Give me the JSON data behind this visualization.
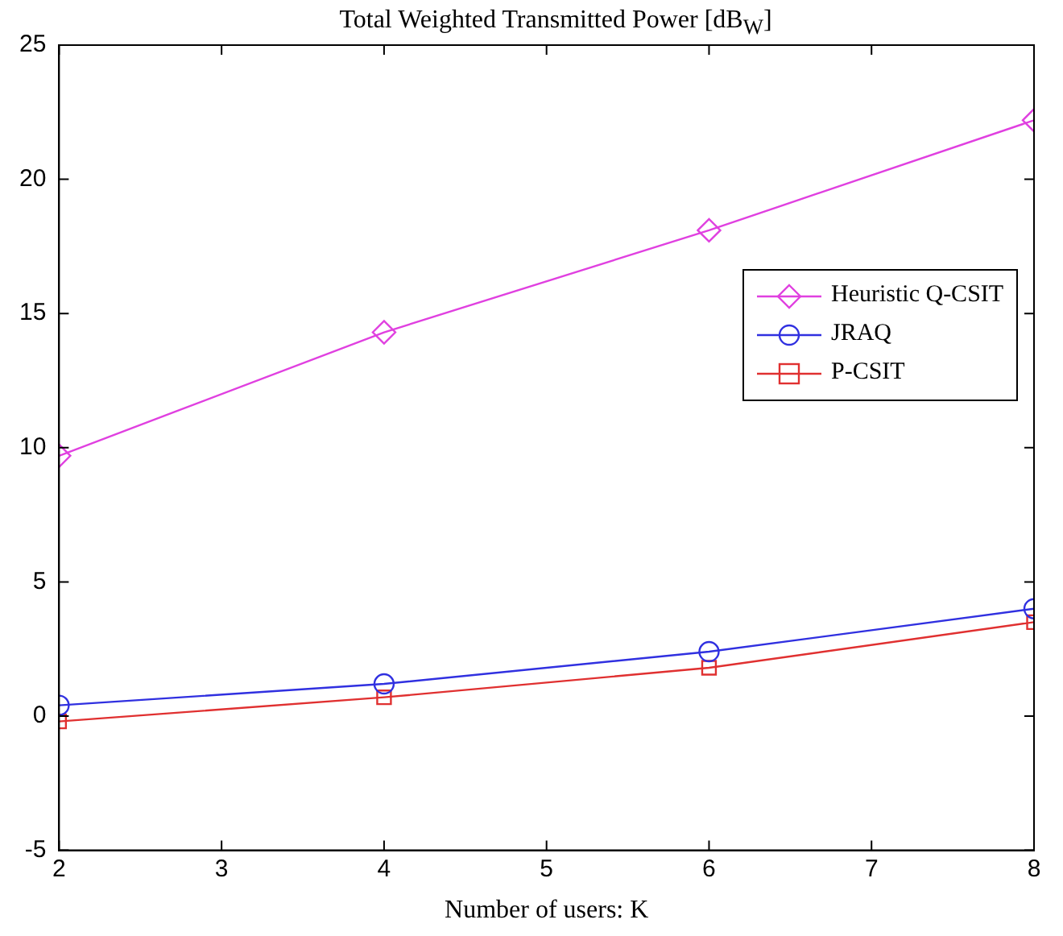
{
  "chart_data": {
    "type": "line",
    "title": "Total Weighted Transmitted Power [dB$_{W}$]",
    "xlabel": "Number of users: K",
    "x": [
      2,
      4,
      6,
      8
    ],
    "xlim": [
      2,
      8
    ],
    "xticks": [
      2,
      3,
      4,
      5,
      6,
      7,
      8
    ],
    "ylim": [
      -5,
      25
    ],
    "yticks": [
      -5,
      0,
      5,
      10,
      15,
      20,
      25
    ],
    "grid": false,
    "legend": "right",
    "line_style": "solid",
    "series": [
      {
        "name": "Heuristic Q-CSIT",
        "color": "#e040e0",
        "marker": "diamond",
        "values": [
          9.7,
          14.3,
          18.1,
          22.2
        ]
      },
      {
        "name": "JRAQ",
        "color": "#3030e0",
        "marker": "circle",
        "values": [
          0.4,
          1.2,
          2.4,
          4.0
        ]
      },
      {
        "name": "P-CSIT",
        "color": "#e03030",
        "marker": "square",
        "values": [
          -0.2,
          0.7,
          1.8,
          3.5
        ]
      }
    ]
  }
}
